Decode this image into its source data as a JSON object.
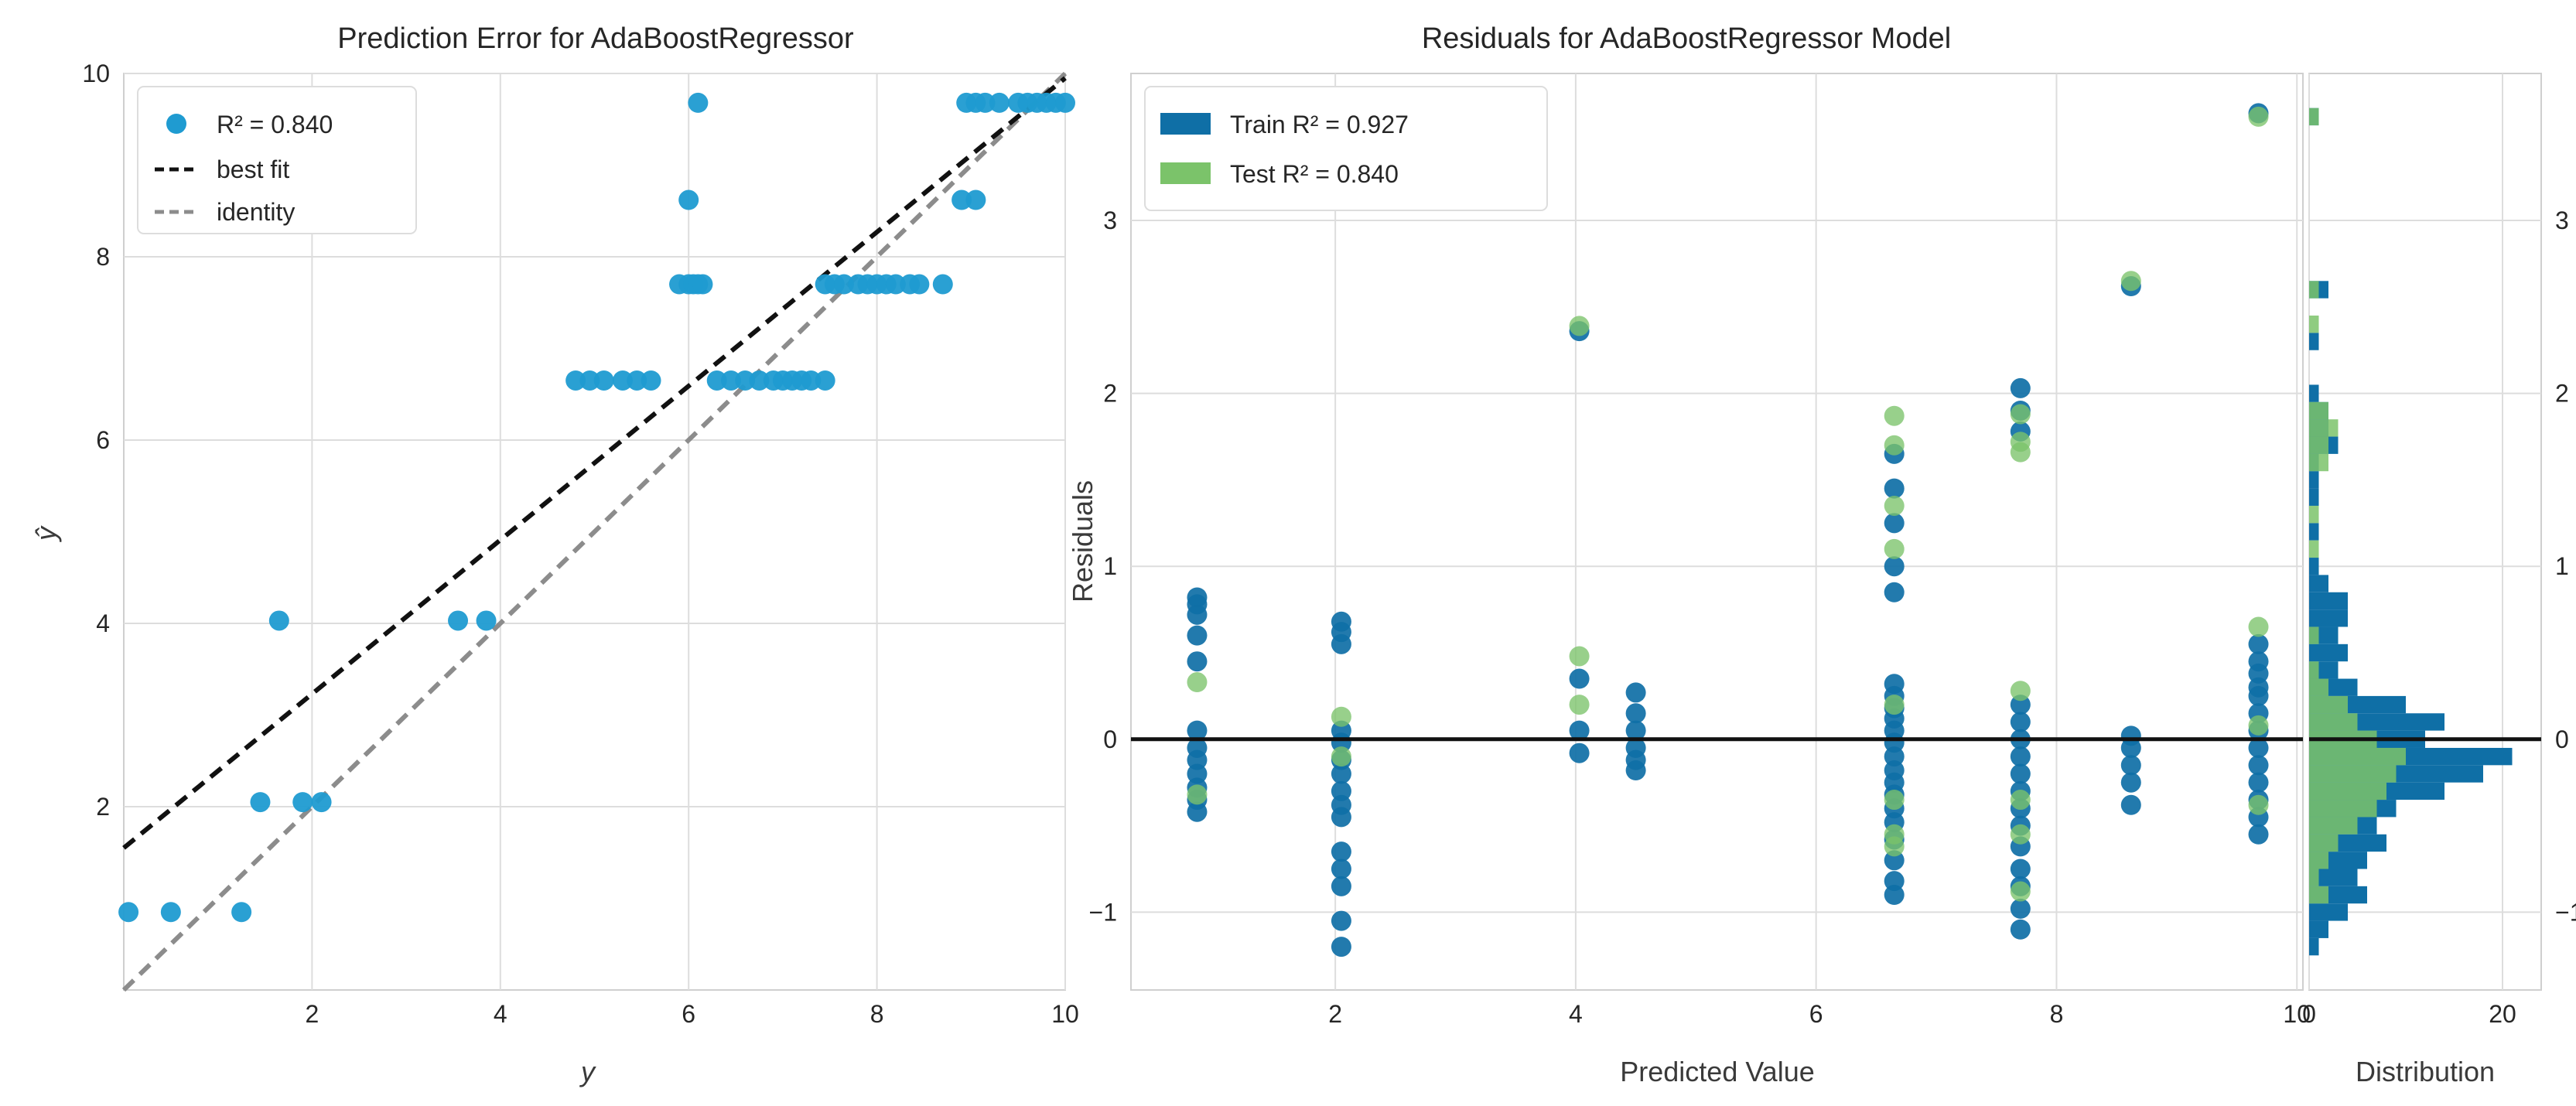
{
  "colors": {
    "train": "#0f6fa6",
    "prediction_point": "#1f9bd1",
    "test": "#7bc36a",
    "best_fit": "#111111",
    "identity": "#8c8c8c",
    "zero_line": "#111111",
    "panel_bg": "#ffffff",
    "grid": "#dddddd",
    "frame": "#cfcfcf"
  },
  "chart_data": [
    {
      "type": "scatter",
      "title": "Prediction Error for AdaBoostRegressor",
      "xlabel": "y",
      "ylabel": "ŷ",
      "xlim": [
        0,
        10
      ],
      "ylim": [
        0,
        10
      ],
      "xticks": [
        2,
        4,
        6,
        8,
        10
      ],
      "yticks": [
        2,
        4,
        6,
        8,
        10
      ],
      "xtick_labels": [
        "2",
        "4",
        "6",
        "8",
        "10"
      ],
      "ytick_labels": [
        "2",
        "4",
        "6",
        "8",
        "10"
      ],
      "legend": {
        "position": "top-left",
        "r2_label": "R² = 0.840",
        "best_fit_label": "best fit",
        "identity_label": "identity"
      },
      "best_fit": {
        "x": [
          0,
          10
        ],
        "y": [
          1.55,
          9.95
        ]
      },
      "identity": {
        "x": [
          0,
          10
        ],
        "y": [
          0,
          10
        ]
      },
      "points": [
        [
          0.05,
          0.85
        ],
        [
          0.5,
          0.85
        ],
        [
          1.25,
          0.85
        ],
        [
          1.45,
          2.05
        ],
        [
          1.65,
          4.03
        ],
        [
          1.9,
          2.05
        ],
        [
          2.1,
          2.05
        ],
        [
          3.55,
          4.03
        ],
        [
          3.85,
          4.03
        ],
        [
          4.8,
          6.65
        ],
        [
          4.95,
          6.65
        ],
        [
          5.1,
          6.65
        ],
        [
          5.3,
          6.65
        ],
        [
          5.45,
          6.65
        ],
        [
          5.6,
          6.65
        ],
        [
          5.9,
          7.7
        ],
        [
          6.0,
          7.7
        ],
        [
          6.05,
          7.7
        ],
        [
          6.1,
          7.7
        ],
        [
          6.15,
          7.7
        ],
        [
          6.0,
          8.62
        ],
        [
          6.1,
          9.68
        ],
        [
          6.3,
          6.65
        ],
        [
          6.45,
          6.65
        ],
        [
          6.6,
          6.65
        ],
        [
          6.75,
          6.65
        ],
        [
          6.9,
          6.65
        ],
        [
          7.0,
          6.65
        ],
        [
          7.1,
          6.65
        ],
        [
          7.2,
          6.65
        ],
        [
          7.3,
          6.65
        ],
        [
          7.45,
          6.65
        ],
        [
          7.45,
          7.7
        ],
        [
          7.55,
          7.7
        ],
        [
          7.65,
          7.7
        ],
        [
          7.8,
          7.7
        ],
        [
          7.9,
          7.7
        ],
        [
          8.0,
          7.7
        ],
        [
          8.1,
          7.7
        ],
        [
          8.2,
          7.7
        ],
        [
          8.35,
          7.7
        ],
        [
          8.45,
          7.7
        ],
        [
          8.7,
          7.7
        ],
        [
          8.9,
          8.62
        ],
        [
          9.05,
          8.62
        ],
        [
          8.95,
          9.68
        ],
        [
          9.05,
          9.68
        ],
        [
          9.15,
          9.68
        ],
        [
          9.3,
          9.68
        ],
        [
          9.5,
          9.68
        ],
        [
          9.6,
          9.68
        ],
        [
          9.7,
          9.68
        ],
        [
          9.8,
          9.68
        ],
        [
          9.9,
          9.68
        ],
        [
          10.0,
          9.68
        ]
      ]
    },
    {
      "type": "scatter",
      "title": "Residuals for AdaBoostRegressor Model",
      "xlabel": "Predicted Value",
      "ylabel": "Residuals",
      "xlim": [
        0.3,
        10.05
      ],
      "ylim": [
        -1.45,
        3.85
      ],
      "xticks": [
        2,
        4,
        6,
        8,
        10
      ],
      "yticks": [
        -1,
        0,
        1,
        2,
        3
      ],
      "xtick_labels": [
        "2",
        "4",
        "6",
        "8",
        "10"
      ],
      "ytick_labels": [
        "−1",
        "0",
        "1",
        "2",
        "3"
      ],
      "legend": {
        "position": "top-left",
        "train_label": "Train R² = 0.927",
        "test_label": "Test R² = 0.840"
      },
      "zero_line": 0,
      "series": [
        {
          "name": "Train",
          "points": [
            [
              0.85,
              0.82
            ],
            [
              0.85,
              0.78
            ],
            [
              0.85,
              0.72
            ],
            [
              0.85,
              0.6
            ],
            [
              0.85,
              0.45
            ],
            [
              0.85,
              0.05
            ],
            [
              0.85,
              -0.05
            ],
            [
              0.85,
              -0.12
            ],
            [
              0.85,
              -0.2
            ],
            [
              0.85,
              -0.28
            ],
            [
              0.85,
              -0.35
            ],
            [
              0.85,
              -0.42
            ],
            [
              2.05,
              0.68
            ],
            [
              2.05,
              0.62
            ],
            [
              2.05,
              0.55
            ],
            [
              2.05,
              0.05
            ],
            [
              2.05,
              -0.02
            ],
            [
              2.05,
              -0.12
            ],
            [
              2.05,
              -0.2
            ],
            [
              2.05,
              -0.3
            ],
            [
              2.05,
              -0.38
            ],
            [
              2.05,
              -0.45
            ],
            [
              2.05,
              -0.65
            ],
            [
              2.05,
              -0.75
            ],
            [
              2.05,
              -0.85
            ],
            [
              2.05,
              -1.05
            ],
            [
              2.05,
              -1.2
            ],
            [
              4.03,
              2.36
            ],
            [
              4.03,
              0.35
            ],
            [
              4.03,
              0.05
            ],
            [
              4.03,
              -0.08
            ],
            [
              4.5,
              0.27
            ],
            [
              4.5,
              0.15
            ],
            [
              4.5,
              0.05
            ],
            [
              4.5,
              -0.05
            ],
            [
              4.5,
              -0.12
            ],
            [
              4.5,
              -0.18
            ],
            [
              6.65,
              1.65
            ],
            [
              6.65,
              1.45
            ],
            [
              6.65,
              1.25
            ],
            [
              6.65,
              1.0
            ],
            [
              6.65,
              0.85
            ],
            [
              6.65,
              0.32
            ],
            [
              6.65,
              0.25
            ],
            [
              6.65,
              0.18
            ],
            [
              6.65,
              0.12
            ],
            [
              6.65,
              0.05
            ],
            [
              6.65,
              -0.02
            ],
            [
              6.65,
              -0.1
            ],
            [
              6.65,
              -0.18
            ],
            [
              6.65,
              -0.25
            ],
            [
              6.65,
              -0.32
            ],
            [
              6.65,
              -0.4
            ],
            [
              6.65,
              -0.48
            ],
            [
              6.65,
              -0.58
            ],
            [
              6.65,
              -0.7
            ],
            [
              6.65,
              -0.82
            ],
            [
              6.65,
              -0.9
            ],
            [
              7.7,
              2.03
            ],
            [
              7.7,
              1.9
            ],
            [
              7.7,
              1.78
            ],
            [
              7.7,
              0.2
            ],
            [
              7.7,
              0.1
            ],
            [
              7.7,
              0.0
            ],
            [
              7.7,
              -0.1
            ],
            [
              7.7,
              -0.2
            ],
            [
              7.7,
              -0.3
            ],
            [
              7.7,
              -0.4
            ],
            [
              7.7,
              -0.5
            ],
            [
              7.7,
              -0.62
            ],
            [
              7.7,
              -0.75
            ],
            [
              7.7,
              -0.85
            ],
            [
              7.7,
              -0.98
            ],
            [
              7.7,
              -1.1
            ],
            [
              8.62,
              2.62
            ],
            [
              8.62,
              0.02
            ],
            [
              8.62,
              -0.05
            ],
            [
              8.62,
              -0.15
            ],
            [
              8.62,
              -0.25
            ],
            [
              8.62,
              -0.38
            ],
            [
              9.68,
              3.62
            ],
            [
              9.68,
              0.55
            ],
            [
              9.68,
              0.45
            ],
            [
              9.68,
              0.38
            ],
            [
              9.68,
              0.3
            ],
            [
              9.68,
              0.25
            ],
            [
              9.68,
              0.15
            ],
            [
              9.68,
              0.05
            ],
            [
              9.68,
              -0.05
            ],
            [
              9.68,
              -0.15
            ],
            [
              9.68,
              -0.25
            ],
            [
              9.68,
              -0.35
            ],
            [
              9.68,
              -0.45
            ],
            [
              9.68,
              -0.55
            ]
          ]
        },
        {
          "name": "Test",
          "points": [
            [
              0.85,
              0.33
            ],
            [
              0.85,
              -0.32
            ],
            [
              2.05,
              0.13
            ],
            [
              2.05,
              -0.1
            ],
            [
              4.03,
              2.39
            ],
            [
              4.03,
              0.48
            ],
            [
              4.03,
              0.2
            ],
            [
              6.65,
              1.87
            ],
            [
              6.65,
              1.7
            ],
            [
              6.65,
              1.35
            ],
            [
              6.65,
              1.1
            ],
            [
              6.65,
              0.2
            ],
            [
              6.65,
              -0.35
            ],
            [
              6.65,
              -0.55
            ],
            [
              6.65,
              -0.62
            ],
            [
              7.7,
              1.88
            ],
            [
              7.7,
              1.72
            ],
            [
              7.7,
              1.66
            ],
            [
              7.7,
              0.28
            ],
            [
              7.7,
              -0.35
            ],
            [
              7.7,
              -0.55
            ],
            [
              7.7,
              -0.88
            ],
            [
              8.62,
              2.65
            ],
            [
              9.68,
              3.6
            ],
            [
              9.68,
              0.65
            ],
            [
              9.68,
              0.08
            ],
            [
              9.68,
              -0.38
            ]
          ]
        }
      ]
    },
    {
      "type": "bar",
      "orientation": "horizontal",
      "title": "",
      "xlabel": "Distribution",
      "ylabel": "",
      "xlim": [
        0,
        24
      ],
      "ylim": [
        -1.45,
        3.85
      ],
      "xticks": [
        0,
        20
      ],
      "yticks": [
        -1,
        0,
        1,
        2,
        3
      ],
      "xtick_labels": [
        "0",
        "20"
      ],
      "ytick_labels": [
        "−1",
        "0",
        "1",
        "2",
        "3"
      ],
      "bin_width": 0.1,
      "series": [
        {
          "name": "Train",
          "bins": [
            [
              -1.2,
              1
            ],
            [
              -1.1,
              2
            ],
            [
              -1.0,
              4
            ],
            [
              -0.9,
              6
            ],
            [
              -0.8,
              5
            ],
            [
              -0.7,
              6
            ],
            [
              -0.6,
              8
            ],
            [
              -0.5,
              7
            ],
            [
              -0.4,
              9
            ],
            [
              -0.3,
              14
            ],
            [
              -0.2,
              18
            ],
            [
              -0.1,
              21
            ],
            [
              0.0,
              12
            ],
            [
              0.1,
              14
            ],
            [
              0.2,
              10
            ],
            [
              0.3,
              5
            ],
            [
              0.4,
              3
            ],
            [
              0.5,
              4
            ],
            [
              0.6,
              3
            ],
            [
              0.7,
              4
            ],
            [
              0.8,
              4
            ],
            [
              0.9,
              2
            ],
            [
              1.0,
              1
            ],
            [
              1.2,
              1
            ],
            [
              1.4,
              1
            ],
            [
              1.5,
              1
            ],
            [
              1.6,
              1
            ],
            [
              1.7,
              3
            ],
            [
              1.8,
              2
            ],
            [
              1.9,
              2
            ],
            [
              2.0,
              1
            ],
            [
              2.3,
              1
            ],
            [
              2.6,
              2
            ],
            [
              3.6,
              1
            ]
          ]
        },
        {
          "name": "Test",
          "bins": [
            [
              -0.9,
              2
            ],
            [
              -0.8,
              1
            ],
            [
              -0.7,
              2
            ],
            [
              -0.6,
              3
            ],
            [
              -0.5,
              5
            ],
            [
              -0.4,
              7
            ],
            [
              -0.3,
              8
            ],
            [
              -0.2,
              9
            ],
            [
              -0.1,
              10
            ],
            [
              0.0,
              7
            ],
            [
              0.1,
              5
            ],
            [
              0.2,
              4
            ],
            [
              0.3,
              2
            ],
            [
              0.4,
              1
            ],
            [
              0.6,
              1
            ],
            [
              1.1,
              1
            ],
            [
              1.3,
              1
            ],
            [
              1.6,
              2
            ],
            [
              1.7,
              2
            ],
            [
              1.8,
              3
            ],
            [
              1.9,
              2
            ],
            [
              2.4,
              1
            ],
            [
              2.6,
              1
            ],
            [
              3.6,
              1
            ]
          ]
        }
      ]
    }
  ]
}
